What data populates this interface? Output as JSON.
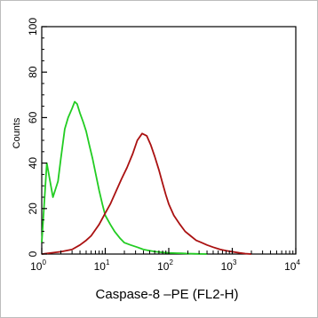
{
  "chart_data": {
    "type": "line",
    "title": "",
    "xlabel": "Caspase-8 –PE (FL2-H)",
    "ylabel": "Counts",
    "x_scale": "log",
    "xlim": [
      1,
      10000
    ],
    "ylim": [
      0,
      100
    ],
    "x_ticks": [
      {
        "value": 1,
        "base": "10",
        "exp": "0"
      },
      {
        "value": 10,
        "base": "10",
        "exp": "1"
      },
      {
        "value": 100,
        "base": "10",
        "exp": "2"
      },
      {
        "value": 1000,
        "base": "10",
        "exp": "3"
      },
      {
        "value": 10000,
        "base": "10",
        "exp": "4"
      }
    ],
    "y_ticks": [
      "0",
      "20",
      "40",
      "60",
      "80",
      "100"
    ],
    "grid": false,
    "legend": "none",
    "series": [
      {
        "color": "#22cc22",
        "x": [
          1.0,
          1.2,
          1.5,
          1.8,
          2.0,
          2.3,
          2.6,
          3.0,
          3.3,
          3.6,
          4.0,
          4.5,
          5.0,
          5.6,
          6.3,
          7.1,
          8.0,
          9.0,
          10,
          12,
          14,
          17,
          20,
          25,
          32,
          40,
          50,
          63,
          80,
          100,
          130,
          160,
          200,
          250,
          320,
          400
        ],
        "y": [
          5,
          40,
          25,
          32,
          42,
          55,
          60,
          64,
          67,
          66,
          62,
          58,
          54,
          48,
          42,
          35,
          28,
          22,
          17,
          13,
          10,
          7,
          5,
          4,
          3,
          2,
          1.5,
          1,
          0.7,
          0.5,
          0.4,
          0.3,
          0.2,
          0.1,
          0.05,
          0
        ]
      },
      {
        "color": "#aa1111",
        "x": [
          1,
          2,
          3,
          4,
          5,
          6,
          8,
          10,
          12,
          15,
          18,
          22,
          27,
          32,
          38,
          45,
          52,
          60,
          70,
          80,
          90,
          100,
          120,
          150,
          180,
          220,
          270,
          330,
          400,
          500,
          650,
          800,
          1000,
          1300,
          1600,
          2000
        ],
        "y": [
          0,
          1,
          2,
          4,
          6,
          8,
          13,
          18,
          22,
          28,
          33,
          38,
          44,
          50,
          53,
          52,
          48,
          43,
          37,
          31,
          26,
          22,
          17,
          13,
          10,
          8,
          6,
          5,
          4,
          3,
          2,
          1.5,
          1,
          0.5,
          0.2,
          0
        ]
      }
    ]
  }
}
